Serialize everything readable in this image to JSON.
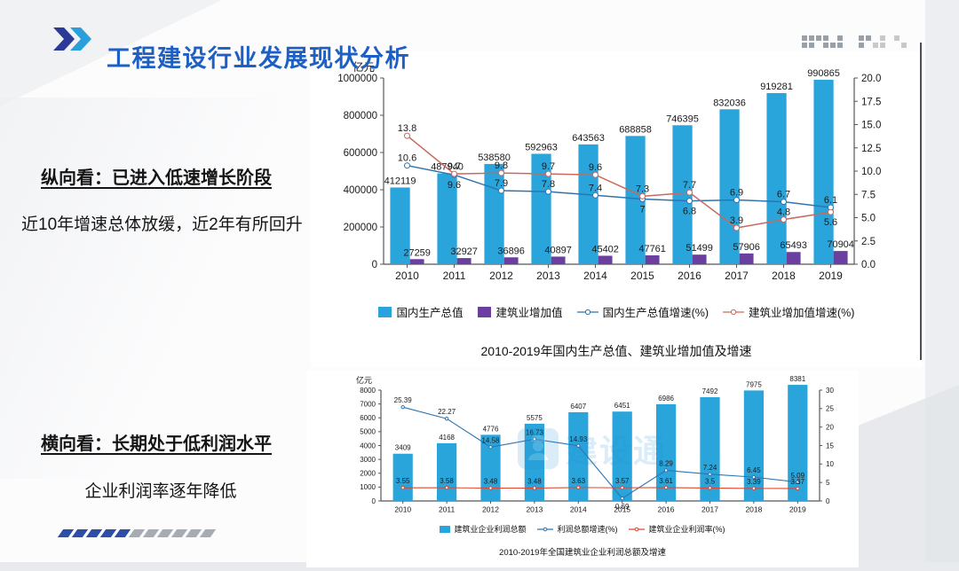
{
  "slide": {
    "title": "工程建设行业发展现状分析",
    "left_blocks": [
      {
        "heading": "纵向看：已进入低速增长阶段",
        "body": "近10年增速总体放缓，近2年有所回升"
      },
      {
        "heading": "横向看：长期处于低利润水平",
        "body": "企业利润率逐年降低"
      }
    ],
    "watermark": "建设通"
  },
  "colors": {
    "title_blue": "#1d5fc2",
    "chevron_dark": "#2b3a96",
    "chevron_light": "#2b9fd9",
    "bar_cyan": "#2aa5db",
    "bar_purple": "#6a3fa0",
    "line_blue": "#2e74b0",
    "line_orange": "#c9695e",
    "line_red": "#e2442c"
  },
  "chart_data": [
    {
      "type": "bar",
      "title": "2010-2019年国内生产总值、建筑业增加值及增速",
      "unit_label": "亿元",
      "legend_position": "bottom",
      "grid": false,
      "categories": [
        "2010",
        "2011",
        "2012",
        "2013",
        "2014",
        "2015",
        "2016",
        "2017",
        "2018",
        "2019"
      ],
      "left_axis": {
        "min": 0,
        "max": 1000000,
        "step": 200000,
        "decimals": 0
      },
      "right_axis": {
        "min": 0,
        "max": 20,
        "step": 2.5,
        "decimals": 1
      },
      "series": [
        {
          "name": "国内生产总值",
          "type": "bar",
          "axis": "left",
          "color": "#2aa5db",
          "values": [
            412119,
            487940,
            538580,
            592963,
            643563,
            688858,
            746395,
            832036,
            919281,
            990865
          ]
        },
        {
          "name": "建筑业增加值",
          "type": "bar",
          "axis": "left",
          "color": "#6a3fa0",
          "values": [
            27259,
            32927,
            36896,
            40897,
            45402,
            47761,
            51499,
            57906,
            65493,
            70904
          ]
        },
        {
          "name": "国内生产总值增速(%)",
          "type": "line",
          "axis": "right",
          "color": "#2e74b0",
          "values": [
            10.6,
            9.6,
            7.9,
            7.8,
            7.4,
            7,
            6.8,
            6.9,
            6.7,
            6.1
          ],
          "label_below_idx": [
            1,
            5,
            6
          ]
        },
        {
          "name": "建筑业增加值增速(%)",
          "type": "line",
          "axis": "right",
          "color": "#c9695e",
          "values": [
            13.8,
            9.7,
            9.8,
            9.7,
            9.6,
            7.3,
            7.7,
            3.9,
            4.8,
            5.6
          ],
          "label_below_idx": [
            9
          ]
        }
      ]
    },
    {
      "type": "bar",
      "title": "2010-2019年全国建筑业企业利润总额及增速",
      "unit_label": "亿元",
      "legend_position": "bottom",
      "grid": false,
      "categories": [
        "2010",
        "2011",
        "2012",
        "2013",
        "2014",
        "2015",
        "2016",
        "2017",
        "2018",
        "2019"
      ],
      "left_axis": {
        "min": 0,
        "max": 8000,
        "step": 1000,
        "decimals": 0
      },
      "right_axis": {
        "min": 0,
        "max": 30,
        "step": 5,
        "decimals": 0
      },
      "series": [
        {
          "name": "建筑业企业利润总额",
          "type": "bar",
          "axis": "left",
          "color": "#2aa5db",
          "values": [
            3409,
            4168,
            4776,
            5575,
            6407,
            6451,
            6986,
            7492,
            7975,
            8381
          ]
        },
        {
          "name": "利润总额增速(%)",
          "type": "line",
          "axis": "right",
          "color": "#2e74b0",
          "values": [
            25.39,
            22.27,
            14.58,
            16.73,
            14.93,
            0.69,
            8.29,
            7.24,
            6.45,
            5.09
          ],
          "label_below_idx": [
            5
          ]
        },
        {
          "name": "建筑业企业利润率(%)",
          "type": "line",
          "axis": "right",
          "color": "#e2442c",
          "values": [
            3.55,
            3.58,
            3.48,
            3.48,
            3.63,
            3.57,
            3.61,
            3.5,
            3.39,
            3.37
          ],
          "label_below_idx": []
        }
      ]
    }
  ]
}
